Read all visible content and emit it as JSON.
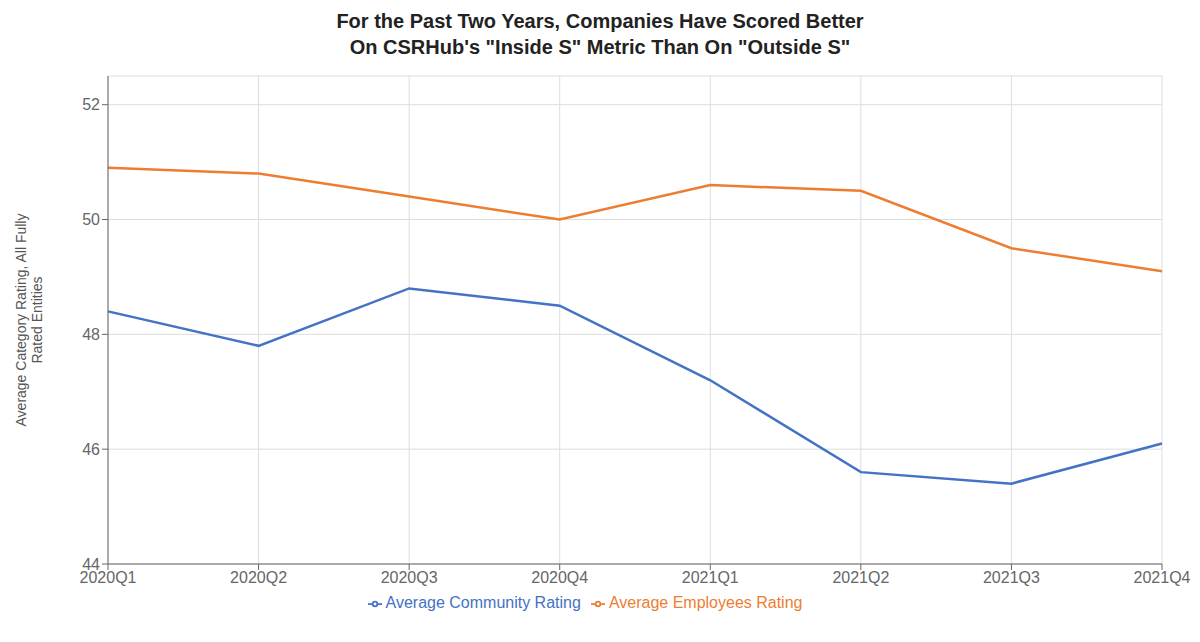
{
  "chart_data": {
    "type": "line",
    "title": "For the Past Two Years, Companies Have Scored Better\nOn CSRHub's \"Inside S\" Metric Than On \"Outside S\"",
    "y_label": "Average Category Rating, All Fully\nRated Entities",
    "categories": [
      "2020Q1",
      "2020Q2",
      "2020Q3",
      "2020Q4",
      "2021Q1",
      "2021Q2",
      "2021Q3",
      "2021Q4"
    ],
    "series": [
      {
        "name": "Average Community Rating",
        "color": "#4472C4",
        "values": [
          48.4,
          47.8,
          48.8,
          48.5,
          47.2,
          45.6,
          45.4,
          46.1
        ]
      },
      {
        "name": "Average Employees Rating",
        "color": "#ED7D31",
        "values": [
          50.9,
          50.8,
          50.4,
          50.0,
          50.6,
          50.5,
          49.5,
          49.1
        ]
      }
    ],
    "ylim": [
      44,
      52.5
    ],
    "yticks": [
      44,
      46,
      48,
      50,
      52
    ],
    "grid": true,
    "legend": "bottom"
  }
}
